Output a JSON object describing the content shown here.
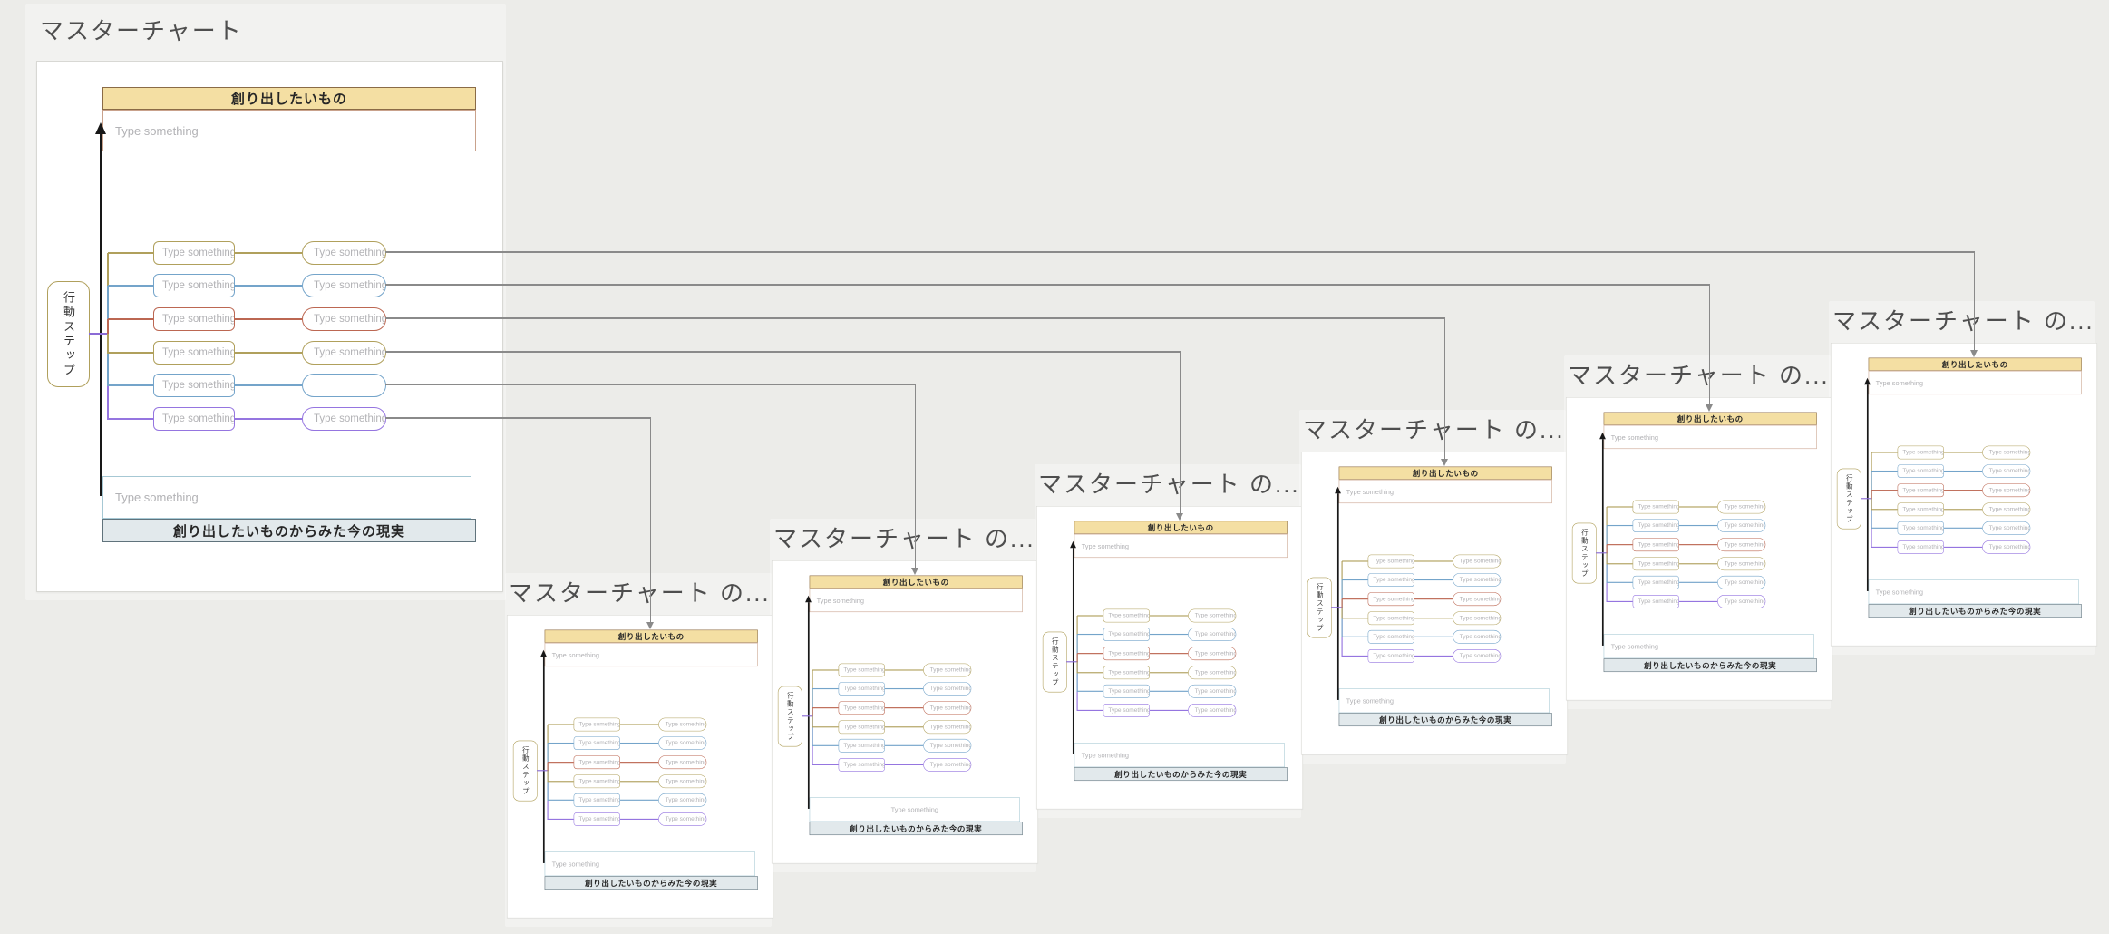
{
  "page": {
    "background": "#ecece9"
  },
  "colors": {
    "olive": "#b0a05c",
    "blue": "#74a4ca",
    "red": "#bc6752",
    "purple": "#9575e0",
    "junction_purple": "#8b6bd6",
    "link_gray": "#8a8a8a",
    "trunk_black": "#181818",
    "header_fill": "#f4dfa3",
    "header_border": "#8a6b46",
    "header_input_border": "#c9a28c",
    "bottom_input_border": "#a6c8d4",
    "footer_fill": "#e2e9ec",
    "footer_border": "#60737c",
    "placeholder_text": "#b2b2b5",
    "title_text": "#4e4e4e"
  },
  "charts": [
    {
      "id": "master",
      "title": "マスターチャート",
      "content": {
        "header_label": "創り出したいもの",
        "header_placeholder": "Type something",
        "action_label": "行動ステップ",
        "rows": [
          {
            "color": "olive",
            "left": "Type something",
            "right": "Type something"
          },
          {
            "color": "blue",
            "left": "Type something",
            "right": "Type something"
          },
          {
            "color": "red",
            "left": "Type something",
            "right": "Type something"
          },
          {
            "color": "olive",
            "left": "Type something",
            "right": "Type something"
          },
          {
            "color": "blue",
            "left": "Type something",
            "right": ""
          },
          {
            "color": "purple",
            "left": "Type something",
            "right": "Type something"
          }
        ],
        "bottom_placeholder": "Type something",
        "footer_label": "創り出したいものからみた今の現実"
      }
    },
    {
      "id": "copy-1",
      "title": "マスターチャート の...",
      "content": {
        "header_label": "創り出したいもの",
        "header_placeholder": "Type something",
        "action_label": "行動ステップ",
        "rows": [
          {
            "color": "olive",
            "left": "Type something",
            "right": "Type something"
          },
          {
            "color": "blue",
            "left": "Type something",
            "right": "Type something"
          },
          {
            "color": "red",
            "left": "Type something",
            "right": "Type something"
          },
          {
            "color": "olive",
            "left": "Type something",
            "right": "Type something"
          },
          {
            "color": "blue",
            "left": "Type something",
            "right": "Type something"
          },
          {
            "color": "purple",
            "left": "Type something",
            "right": "Type something"
          }
        ],
        "bottom_placeholder": "Type something",
        "footer_label": "創り出したいものからみた今の現実"
      }
    },
    {
      "id": "copy-2",
      "title": "マスターチャート の...",
      "bottom_text_centered": true,
      "content": {
        "header_label": "創り出したいもの",
        "header_placeholder": "Type something",
        "action_label": "行動ステップ",
        "rows": [
          {
            "color": "olive",
            "left": "Type something",
            "right": "Type something"
          },
          {
            "color": "blue",
            "left": "Type something",
            "right": "Type something"
          },
          {
            "color": "red",
            "left": "Type something",
            "right": "Type something"
          },
          {
            "color": "olive",
            "left": "Type something",
            "right": "Type something"
          },
          {
            "color": "blue",
            "left": "Type something",
            "right": "Type something"
          },
          {
            "color": "purple",
            "left": "Type something",
            "right": "Type something"
          }
        ],
        "bottom_placeholder": "Type something",
        "footer_label": "創り出したいものからみた今の現実"
      }
    },
    {
      "id": "copy-3",
      "title": "マスターチャート の...",
      "content": {
        "header_label": "創り出したいもの",
        "header_placeholder": "Type something",
        "action_label": "行動ステップ",
        "rows": [
          {
            "color": "olive",
            "left": "Type something",
            "right": "Type something"
          },
          {
            "color": "blue",
            "left": "Type something",
            "right": "Type something"
          },
          {
            "color": "red",
            "left": "Type something",
            "right": "Type something"
          },
          {
            "color": "olive",
            "left": "Type something",
            "right": "Type something"
          },
          {
            "color": "blue",
            "left": "Type something",
            "right": "Type something"
          },
          {
            "color": "purple",
            "left": "Type something",
            "right": "Type something"
          }
        ],
        "bottom_placeholder": "Type something",
        "footer_label": "創り出したいものからみた今の現実"
      }
    },
    {
      "id": "copy-4",
      "title": "マスターチャート の...",
      "content": {
        "header_label": "創り出したいもの",
        "header_placeholder": "Type something",
        "action_label": "行動ステップ",
        "rows": [
          {
            "color": "olive",
            "left": "Type something",
            "right": "Type something"
          },
          {
            "color": "blue",
            "left": "Type something",
            "right": "Type something"
          },
          {
            "color": "red",
            "left": "Type something",
            "right": "Type something"
          },
          {
            "color": "olive",
            "left": "Type something",
            "right": "Type something"
          },
          {
            "color": "blue",
            "left": "Type something",
            "right": "Type something"
          },
          {
            "color": "purple",
            "left": "Type something",
            "right": "Type something"
          }
        ],
        "bottom_placeholder": "Type something",
        "footer_label": "創り出したいものからみた今の現実"
      }
    },
    {
      "id": "copy-5",
      "title": "マスターチャート の...",
      "content": {
        "header_label": "創り出したいもの",
        "header_placeholder": "Type something",
        "action_label": "行動ステップ",
        "rows": [
          {
            "color": "olive",
            "left": "Type something",
            "right": "Type something"
          },
          {
            "color": "blue",
            "left": "Type something",
            "right": "Type something"
          },
          {
            "color": "red",
            "left": "Type something",
            "right": "Type something"
          },
          {
            "color": "olive",
            "left": "Type something",
            "right": "Type something"
          },
          {
            "color": "blue",
            "left": "Type something",
            "right": "Type something"
          },
          {
            "color": "purple",
            "left": "Type something",
            "right": "Type something"
          }
        ],
        "bottom_placeholder": "Type something",
        "footer_label": "創り出したいものからみた今の現実"
      }
    },
    {
      "id": "copy-6",
      "title": "マスターチャート の...",
      "content": {
        "header_label": "創り出したいもの",
        "header_placeholder": "Type something",
        "action_label": "行動ステップ",
        "rows": [
          {
            "color": "olive",
            "left": "Type something",
            "right": "Type something"
          },
          {
            "color": "blue",
            "left": "Type something",
            "right": "Type something"
          },
          {
            "color": "red",
            "left": "Type something",
            "right": "Type something"
          },
          {
            "color": "olive",
            "left": "Type something",
            "right": "Type something"
          },
          {
            "color": "blue",
            "left": "Type something",
            "right": "Type something"
          },
          {
            "color": "purple",
            "left": "Type something",
            "right": "Type something"
          }
        ],
        "bottom_placeholder": "Type something",
        "footer_label": "創り出したいものからみた今の現実"
      }
    }
  ]
}
